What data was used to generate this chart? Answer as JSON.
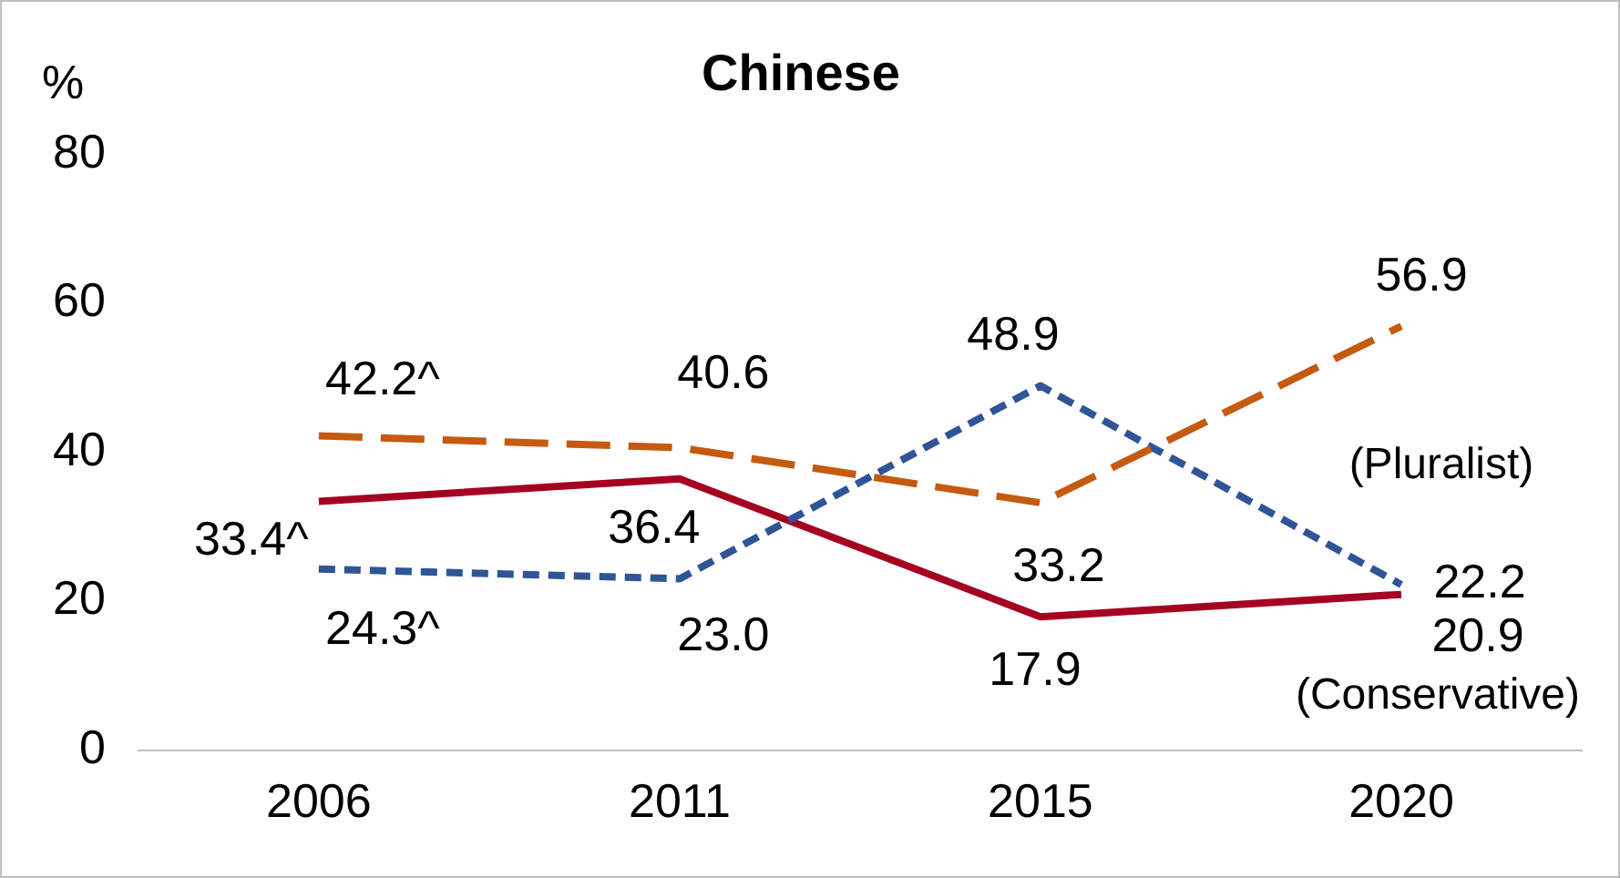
{
  "chart_data": {
    "type": "line",
    "title": "Chinese",
    "ylabel": "%",
    "categories": [
      "2006",
      "2011",
      "2015",
      "2020"
    ],
    "ylim": [
      0,
      80
    ],
    "yticks": [
      0,
      20,
      40,
      60,
      80
    ],
    "grid": false,
    "legend": false,
    "marker": "none",
    "series": [
      {
        "color": "#c55a11",
        "line_style": "dashed",
        "values": [
          42.2,
          40.6,
          33.2,
          56.9
        ],
        "value_labels": [
          "42.2^",
          "40.6",
          "33.2",
          "56.9"
        ]
      },
      {
        "name": "(Pluralist)",
        "color": "#2f5597",
        "line_style": "dotted",
        "values": [
          24.3,
          23.0,
          48.9,
          22.2
        ],
        "value_labels": [
          "24.3^",
          "23.0",
          "48.9",
          "22.2"
        ]
      },
      {
        "name": "(Conservative)",
        "color": "#a50021",
        "line_style": "solid",
        "values": [
          33.4,
          36.4,
          17.9,
          20.9
        ],
        "value_labels": [
          "33.4^",
          "36.4",
          "17.9",
          "20.9"
        ]
      }
    ]
  }
}
